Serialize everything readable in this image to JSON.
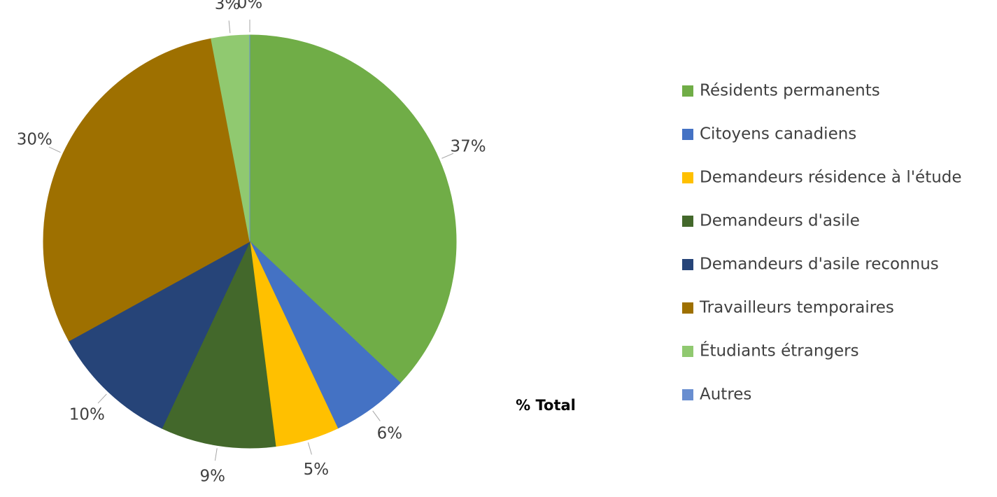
{
  "chart_data": {
    "type": "pie",
    "title": "% Total",
    "categories": [
      "Résidents permanents",
      "Citoyens canadiens",
      "Demandeurs résidence à l'étude",
      "Demandeurs d'asile",
      "Demandeurs d'asile reconnus",
      "Travailleurs temporaires",
      "Étudiants étrangers",
      "Autres"
    ],
    "values": [
      37,
      6,
      5,
      9,
      10,
      30,
      3,
      0
    ],
    "value_labels": [
      "37%",
      "6%",
      "5%",
      "9%",
      "10%",
      "30%",
      "3%",
      "0%"
    ],
    "colors": [
      "#70ad47",
      "#4472c4",
      "#ffc000",
      "#43682b",
      "#264478",
      "#9e7000",
      "#90c970",
      "#698ed0"
    ]
  }
}
